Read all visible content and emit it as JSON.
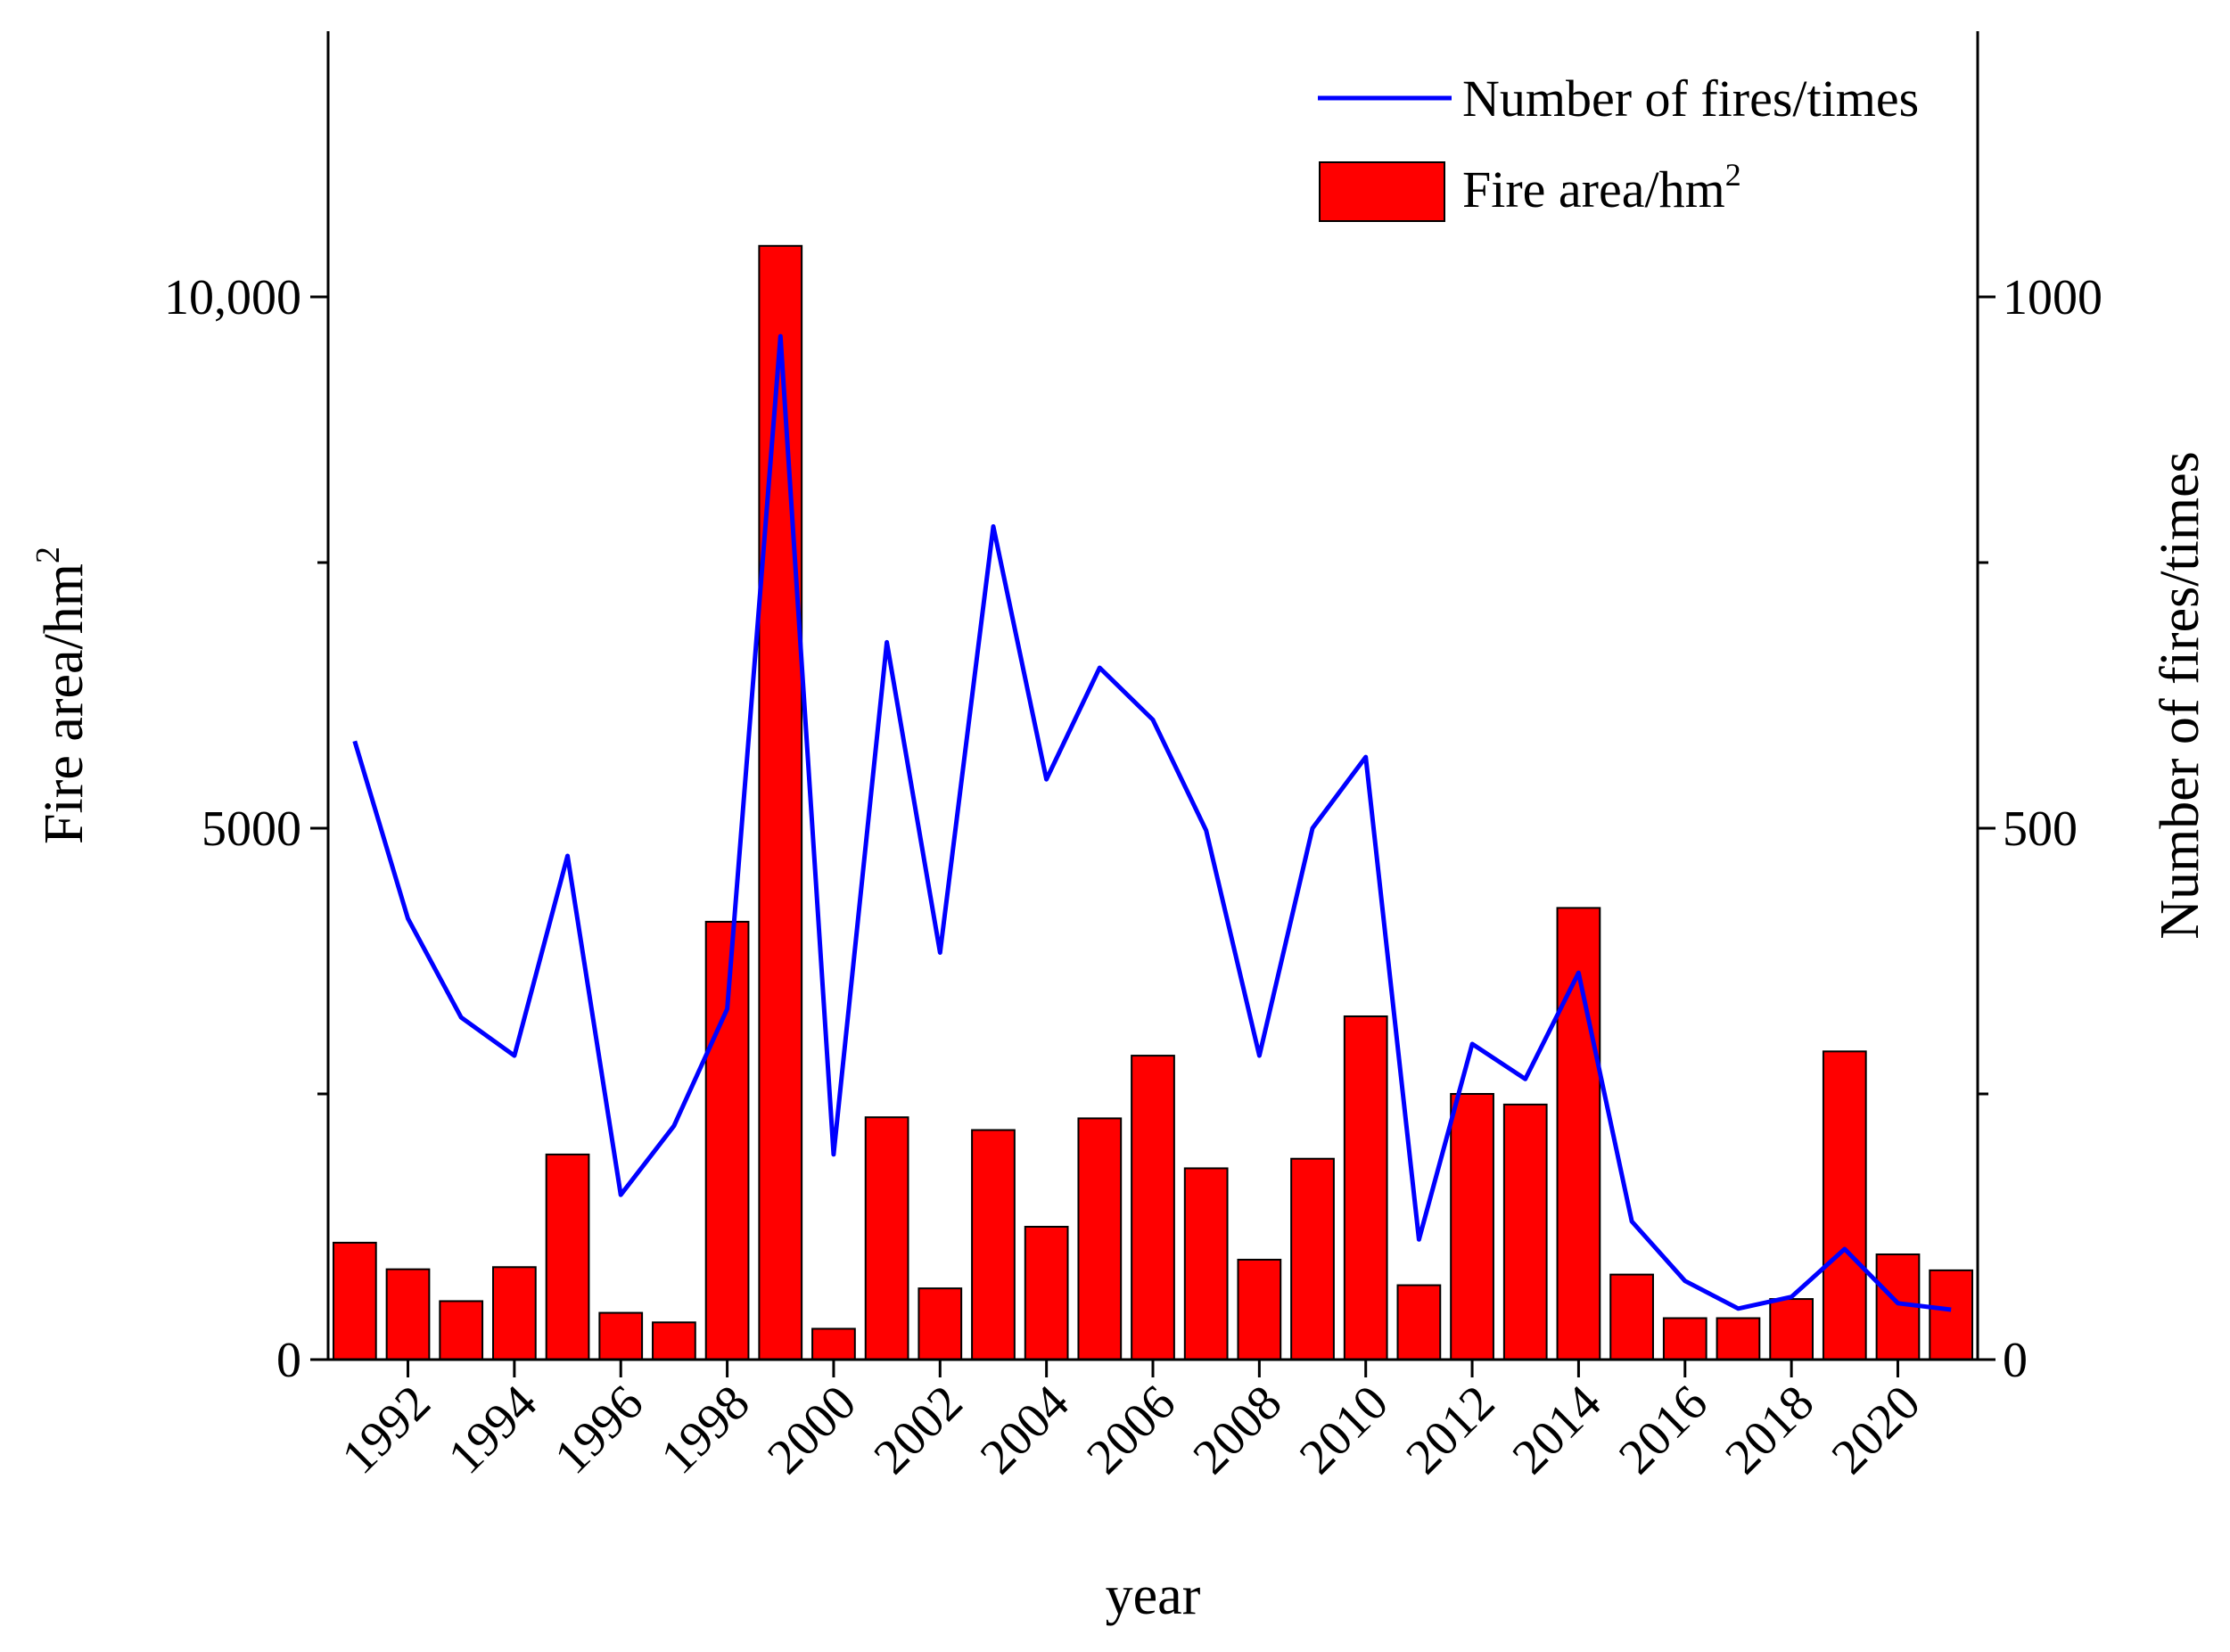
{
  "chart_data": {
    "type": "bar+line",
    "categories": [
      1991,
      1992,
      1993,
      1994,
      1995,
      1996,
      1997,
      1998,
      1999,
      2000,
      2001,
      2002,
      2003,
      2004,
      2005,
      2006,
      2007,
      2008,
      2009,
      2010,
      2011,
      2012,
      2013,
      2014,
      2015,
      2016,
      2017,
      2018,
      2019,
      2020,
      2021
    ],
    "x_tick_labels": [
      "1992",
      "1994",
      "1996",
      "1998",
      "2000",
      "2002",
      "2004",
      "2006",
      "2008",
      "2010",
      "2012",
      "2014",
      "2016",
      "2018",
      "2020"
    ],
    "series": [
      {
        "name": "Fire area/hm",
        "name_superscript": "2",
        "type": "bar",
        "axis": "left",
        "color": "#ff0000",
        "values": [
          1100,
          850,
          550,
          870,
          1930,
          440,
          350,
          4120,
          10480,
          290,
          2280,
          670,
          2160,
          1250,
          2270,
          2860,
          1800,
          940,
          1890,
          3230,
          700,
          2500,
          2400,
          4250,
          800,
          390,
          390,
          570,
          2900,
          990,
          840
        ]
      },
      {
        "name": "Number of fires/times",
        "type": "line",
        "axis": "right",
        "color": "#0000ff",
        "values": [
          582,
          415,
          322,
          286,
          474,
          155,
          220,
          330,
          963,
          193,
          675,
          383,
          784,
          546,
          651,
          602,
          498,
          286,
          500,
          567,
          113,
          297,
          264,
          364,
          130,
          74,
          48,
          59,
          104,
          53,
          47
        ]
      }
    ],
    "xlabel": "year",
    "ylabel_left": "Fire area/hm",
    "ylabel_left_superscript": "2",
    "ylabel_right": "Number of fires/times",
    "ylim_left": [
      0,
      12500
    ],
    "ylim_right": [
      0,
      1250
    ],
    "yticks_left": [
      {
        "value": 0,
        "label": "0"
      },
      {
        "value": 5000,
        "label": "5000"
      },
      {
        "value": 10000,
        "label": "10,000"
      }
    ],
    "yticks_right": [
      {
        "value": 0,
        "label": "0"
      },
      {
        "value": 500,
        "label": "500"
      },
      {
        "value": 1000,
        "label": "1000"
      }
    ],
    "legend": {
      "position": "top-right",
      "line_label": "Number of fires/times",
      "bar_label": "Fire area/hm",
      "bar_label_superscript": "2"
    },
    "grid": false
  }
}
